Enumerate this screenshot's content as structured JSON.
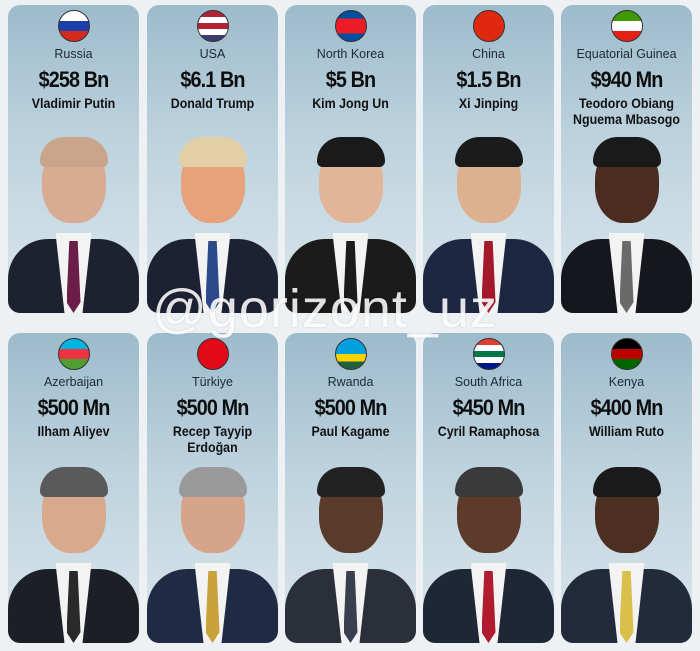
{
  "rows": [
    [
      {
        "country": "Russia",
        "amount": "$258 Bn",
        "leader": "Vladimir Putin",
        "flag": [
          "#ffffff",
          "#1c3fa8",
          "#d52b1e"
        ],
        "portrait": {
          "skin": "#d9ab92",
          "hair": "#c9a58c",
          "suit": "#1e2230",
          "tie": "#6b1e47"
        }
      },
      {
        "country": "USA",
        "amount": "$6.1 Bn",
        "leader": "Donald Trump",
        "flag": [
          "#b22234",
          "#ffffff",
          "#b22234",
          "#ffffff",
          "#3c3b6e"
        ],
        "portrait": {
          "skin": "#e6a27a",
          "hair": "#e2cfa5",
          "suit": "#1c2233",
          "tie": "#2c4a8a"
        }
      },
      {
        "country": "North Korea",
        "amount": "$5 Bn",
        "leader": "Kim Jong Un",
        "flag": [
          "#024fa2",
          "#ed1c27",
          "#ed1c27",
          "#024fa2"
        ],
        "portrait": {
          "skin": "#e3b598",
          "hair": "#1a1a1a",
          "suit": "#1b1b1b",
          "tie": "#1b1b1b"
        }
      },
      {
        "country": "China",
        "amount": "$1.5 Bn",
        "leader": "Xi Jinping",
        "flag": [
          "#de2910",
          "#de2910",
          "#de2910"
        ],
        "portrait": {
          "skin": "#ddb08f",
          "hair": "#1b1b1b",
          "suit": "#1d2742",
          "tie": "#a3182a"
        }
      },
      {
        "country": "Equatorial Guinea",
        "amount": "$940 Mn",
        "leader": "Teodoro Obiang Nguema Mbasogo",
        "flag": [
          "#3e9a00",
          "#ffffff",
          "#e32118"
        ],
        "portrait": {
          "skin": "#4a2c20",
          "hair": "#1a1a1a",
          "suit": "#15171c",
          "tie": "#6a6a6a"
        }
      }
    ],
    [
      {
        "country": "Azerbaijan",
        "amount": "$500 Mn",
        "leader": "Ilham Aliyev",
        "flag": [
          "#00b5e2",
          "#ef3340",
          "#509e2f"
        ],
        "portrait": {
          "skin": "#d8a98c",
          "hair": "#5a5a5a",
          "suit": "#1c1f26",
          "tie": "#2a2a2a"
        }
      },
      {
        "country": "Türkiye",
        "amount": "$500 Mn",
        "leader": "Recep Tayyip Erdoğan",
        "flag": [
          "#e30a17",
          "#e30a17",
          "#e30a17"
        ],
        "portrait": {
          "skin": "#d5a48a",
          "hair": "#9a9a9a",
          "suit": "#1f2a45",
          "tie": "#c9a23a"
        }
      },
      {
        "country": "Rwanda",
        "amount": "$500 Mn",
        "leader": "Paul Kagame",
        "flag": [
          "#00a1de",
          "#00a1de",
          "#fad201",
          "#20603d"
        ],
        "portrait": {
          "skin": "#5a3a2a",
          "hair": "#222222",
          "suit": "#2a2f3a",
          "tie": "#3a3f50"
        }
      },
      {
        "country": "South Africa",
        "amount": "$450 Mn",
        "leader": "Cyril Ramaphosa",
        "flag": [
          "#e03c31",
          "#ffffff",
          "#007749",
          "#ffffff",
          "#001489"
        ],
        "portrait": {
          "skin": "#5e3a2a",
          "hair": "#3a3a3a",
          "suit": "#1f2636",
          "tie": "#b01c2e"
        }
      },
      {
        "country": "Kenya",
        "amount": "$400 Mn",
        "leader": "William Ruto",
        "flag": [
          "#000000",
          "#bb0000",
          "#006600"
        ],
        "portrait": {
          "skin": "#4d2f22",
          "hair": "#1a1a1a",
          "suit": "#222a3c",
          "tie": "#d8c04a"
        }
      }
    ]
  ],
  "watermark": "@gorizont_uz"
}
